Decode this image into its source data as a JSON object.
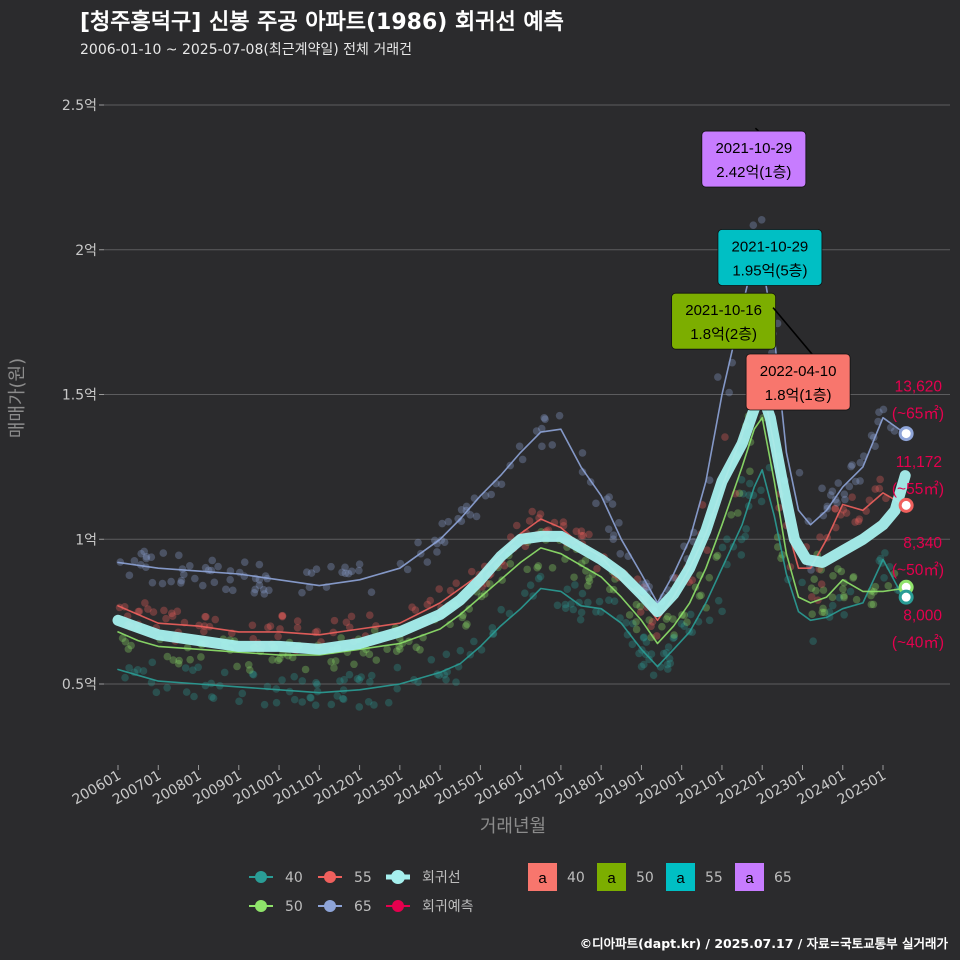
{
  "header": {
    "title": "[청주흥덕구] 신봉 주공 아파트(1986) 회귀선 예측",
    "subtitle": "2006-01-10 ~ 2025-07-08(최근계약일) 전체 거래건"
  },
  "footer": {
    "credit": "©디아파트(dapt.kr) / 2025.07.17 / 자료=국토교통부 실거래가"
  },
  "colors": {
    "background": "#2b2b2d",
    "grid": "#5c5c5e",
    "s40": "#2a9d96",
    "s50": "#8fe36a",
    "s55": "#f0605d",
    "s65": "#8ea4d8",
    "regression": "#a6f0ee",
    "prediction": "#e5004e"
  },
  "chart_data": {
    "type": "line",
    "xlabel": "거래년월",
    "ylabel": "매매가(원)",
    "x_ticks": [
      "200601",
      "200701",
      "200801",
      "200901",
      "201001",
      "201101",
      "201201",
      "201301",
      "201401",
      "201501",
      "201601",
      "201701",
      "201801",
      "201901",
      "202001",
      "202101",
      "202201",
      "202301",
      "202401",
      "202501"
    ],
    "y_ticks": [
      {
        "value": 0.5,
        "label": "0.5억"
      },
      {
        "value": 1.0,
        "label": "1억"
      },
      {
        "value": 1.5,
        "label": "1.5억"
      },
      {
        "value": 2.0,
        "label": "2억"
      },
      {
        "value": 2.5,
        "label": "2.5억"
      }
    ],
    "xlim": [
      2006.0,
      2025.8
    ],
    "ylim": [
      0.27,
      2.68
    ],
    "series": [
      {
        "name": "40",
        "color_key": "s40",
        "points": [
          [
            2006.0,
            0.55
          ],
          [
            2006.5,
            0.53
          ],
          [
            2007.0,
            0.51
          ],
          [
            2008.0,
            0.5
          ],
          [
            2009.0,
            0.49
          ],
          [
            2010.0,
            0.48
          ],
          [
            2011.0,
            0.47
          ],
          [
            2012.0,
            0.48
          ],
          [
            2013.0,
            0.5
          ],
          [
            2014.0,
            0.54
          ],
          [
            2014.5,
            0.57
          ],
          [
            2015.0,
            0.63
          ],
          [
            2015.5,
            0.7
          ],
          [
            2016.0,
            0.76
          ],
          [
            2016.5,
            0.83
          ],
          [
            2017.0,
            0.82
          ],
          [
            2017.5,
            0.77
          ],
          [
            2018.0,
            0.76
          ],
          [
            2018.5,
            0.71
          ],
          [
            2019.0,
            0.62
          ],
          [
            2019.4,
            0.56
          ],
          [
            2019.8,
            0.62
          ],
          [
            2020.2,
            0.68
          ],
          [
            2020.6,
            0.78
          ],
          [
            2021.0,
            0.9
          ],
          [
            2021.5,
            1.05
          ],
          [
            2021.8,
            1.18
          ],
          [
            2022.0,
            1.24
          ],
          [
            2022.3,
            1.08
          ],
          [
            2022.6,
            0.88
          ],
          [
            2022.9,
            0.75
          ],
          [
            2023.2,
            0.72
          ],
          [
            2023.6,
            0.73
          ],
          [
            2024.0,
            0.76
          ],
          [
            2024.5,
            0.78
          ],
          [
            2025.0,
            0.93
          ],
          [
            2025.5,
            0.8
          ]
        ]
      },
      {
        "name": "50",
        "color_key": "s50",
        "points": [
          [
            2006.0,
            0.68
          ],
          [
            2006.5,
            0.65
          ],
          [
            2007.0,
            0.63
          ],
          [
            2008.0,
            0.62
          ],
          [
            2009.0,
            0.61
          ],
          [
            2010.0,
            0.6
          ],
          [
            2011.0,
            0.6
          ],
          [
            2012.0,
            0.62
          ],
          [
            2013.0,
            0.64
          ],
          [
            2014.0,
            0.69
          ],
          [
            2014.5,
            0.74
          ],
          [
            2015.0,
            0.8
          ],
          [
            2015.5,
            0.86
          ],
          [
            2016.0,
            0.92
          ],
          [
            2016.5,
            0.97
          ],
          [
            2017.0,
            0.95
          ],
          [
            2017.5,
            0.91
          ],
          [
            2018.0,
            0.87
          ],
          [
            2018.5,
            0.8
          ],
          [
            2019.0,
            0.72
          ],
          [
            2019.4,
            0.64
          ],
          [
            2019.8,
            0.7
          ],
          [
            2020.2,
            0.78
          ],
          [
            2020.6,
            0.9
          ],
          [
            2021.0,
            1.05
          ],
          [
            2021.5,
            1.25
          ],
          [
            2021.8,
            1.38
          ],
          [
            2022.0,
            1.42
          ],
          [
            2022.3,
            1.2
          ],
          [
            2022.6,
            0.95
          ],
          [
            2022.9,
            0.8
          ],
          [
            2023.2,
            0.78
          ],
          [
            2023.6,
            0.8
          ],
          [
            2024.0,
            0.86
          ],
          [
            2024.5,
            0.82
          ],
          [
            2025.0,
            0.82
          ],
          [
            2025.5,
            0.83
          ]
        ]
      },
      {
        "name": "55",
        "color_key": "s55",
        "points": [
          [
            2006.0,
            0.77
          ],
          [
            2006.5,
            0.74
          ],
          [
            2007.0,
            0.71
          ],
          [
            2008.0,
            0.7
          ],
          [
            2009.0,
            0.68
          ],
          [
            2010.0,
            0.68
          ],
          [
            2011.0,
            0.67
          ],
          [
            2012.0,
            0.69
          ],
          [
            2013.0,
            0.71
          ],
          [
            2014.0,
            0.78
          ],
          [
            2014.5,
            0.83
          ],
          [
            2015.0,
            0.88
          ],
          [
            2015.5,
            0.95
          ],
          [
            2016.0,
            1.02
          ],
          [
            2016.5,
            1.07
          ],
          [
            2017.0,
            1.04
          ],
          [
            2017.5,
            0.98
          ],
          [
            2018.0,
            0.94
          ],
          [
            2018.5,
            0.86
          ],
          [
            2019.0,
            0.8
          ],
          [
            2019.4,
            0.72
          ],
          [
            2019.8,
            0.8
          ],
          [
            2020.2,
            0.9
          ],
          [
            2020.6,
            1.02
          ],
          [
            2021.0,
            1.18
          ],
          [
            2021.5,
            1.36
          ],
          [
            2021.8,
            1.5
          ],
          [
            2022.0,
            1.54
          ],
          [
            2022.3,
            1.32
          ],
          [
            2022.6,
            1.05
          ],
          [
            2022.9,
            0.9
          ],
          [
            2023.2,
            0.9
          ],
          [
            2023.6,
            1.0
          ],
          [
            2024.0,
            1.12
          ],
          [
            2024.5,
            1.1
          ],
          [
            2025.0,
            1.16
          ],
          [
            2025.5,
            1.12
          ]
        ]
      },
      {
        "name": "65",
        "color_key": "s65",
        "points": [
          [
            2006.0,
            0.92
          ],
          [
            2006.5,
            0.91
          ],
          [
            2007.0,
            0.9
          ],
          [
            2008.0,
            0.89
          ],
          [
            2009.0,
            0.88
          ],
          [
            2010.0,
            0.86
          ],
          [
            2011.0,
            0.84
          ],
          [
            2012.0,
            0.86
          ],
          [
            2013.0,
            0.9
          ],
          [
            2014.0,
            1.0
          ],
          [
            2014.5,
            1.07
          ],
          [
            2015.0,
            1.15
          ],
          [
            2015.5,
            1.22
          ],
          [
            2016.0,
            1.3
          ],
          [
            2016.5,
            1.37
          ],
          [
            2017.0,
            1.38
          ],
          [
            2017.5,
            1.25
          ],
          [
            2018.0,
            1.15
          ],
          [
            2018.5,
            1.0
          ],
          [
            2019.0,
            0.88
          ],
          [
            2019.4,
            0.78
          ],
          [
            2019.8,
            0.88
          ],
          [
            2020.2,
            1.0
          ],
          [
            2020.6,
            1.2
          ],
          [
            2021.0,
            1.5
          ],
          [
            2021.5,
            1.8
          ],
          [
            2021.8,
            1.98
          ],
          [
            2022.0,
            1.96
          ],
          [
            2022.3,
            1.7
          ],
          [
            2022.6,
            1.3
          ],
          [
            2022.9,
            1.1
          ],
          [
            2023.2,
            1.05
          ],
          [
            2023.6,
            1.1
          ],
          [
            2024.0,
            1.18
          ],
          [
            2024.5,
            1.25
          ],
          [
            2025.0,
            1.42
          ],
          [
            2025.5,
            1.37
          ]
        ]
      },
      {
        "name": "회귀선",
        "color_key": "regression",
        "points": [
          [
            2006.0,
            0.72
          ],
          [
            2007.0,
            0.67
          ],
          [
            2008.0,
            0.65
          ],
          [
            2009.0,
            0.63
          ],
          [
            2010.0,
            0.63
          ],
          [
            2011.0,
            0.62
          ],
          [
            2012.0,
            0.64
          ],
          [
            2013.0,
            0.68
          ],
          [
            2014.0,
            0.74
          ],
          [
            2014.5,
            0.79
          ],
          [
            2015.0,
            0.86
          ],
          [
            2015.5,
            0.94
          ],
          [
            2016.0,
            1.0
          ],
          [
            2016.5,
            1.01
          ],
          [
            2017.0,
            1.01
          ],
          [
            2017.5,
            0.97
          ],
          [
            2018.0,
            0.93
          ],
          [
            2018.5,
            0.88
          ],
          [
            2019.0,
            0.81
          ],
          [
            2019.4,
            0.75
          ],
          [
            2019.8,
            0.81
          ],
          [
            2020.2,
            0.9
          ],
          [
            2020.6,
            1.03
          ],
          [
            2021.0,
            1.2
          ],
          [
            2021.5,
            1.33
          ],
          [
            2021.8,
            1.45
          ],
          [
            2022.0,
            1.5
          ],
          [
            2022.2,
            1.42
          ],
          [
            2022.5,
            1.2
          ],
          [
            2022.8,
            1.0
          ],
          [
            2023.1,
            0.93
          ],
          [
            2023.5,
            0.92
          ],
          [
            2024.0,
            0.96
          ],
          [
            2024.5,
            1.0
          ],
          [
            2025.0,
            1.05
          ],
          [
            2025.3,
            1.1
          ],
          [
            2025.55,
            1.22
          ]
        ]
      }
    ],
    "predictions": [
      {
        "series": "65",
        "price": "13,620",
        "area": "(~65㎡)",
        "y": 1.365,
        "label_y": 1.51
      },
      {
        "series": "55",
        "price": "11,172",
        "area": "(~55㎡)",
        "y": 1.117,
        "label_y": 1.25
      },
      {
        "series": "50",
        "price": "8,340",
        "area": "(~50㎡)",
        "y": 0.834,
        "label_y": 0.97
      },
      {
        "series": "40",
        "price": "8,000",
        "area": "(~40㎡)",
        "y": 0.8,
        "label_y": 0.72
      }
    ],
    "annotations": [
      {
        "date": "2021-10-29",
        "price": "2.42억(1층)",
        "series": "65",
        "color": "#c77cff",
        "x": 2021.83,
        "y": 2.42,
        "box_x": 2020.5,
        "box_y": 2.41
      },
      {
        "date": "2021-10-29",
        "price": "1.95억(5층)",
        "series": "55",
        "color": "#00bfc4",
        "x": 2021.83,
        "y": 1.95,
        "box_x": 2020.9,
        "box_y": 2.07
      },
      {
        "date": "2021-10-16",
        "price": "1.8억(2층)",
        "series": "50",
        "color": "#7cae00",
        "x": 2021.79,
        "y": 1.8,
        "box_x": 2019.75,
        "box_y": 1.85
      },
      {
        "date": "2022-04-10",
        "price": "1.8억(1층)",
        "series": "40",
        "color": "#f8766d",
        "x": 2022.27,
        "y": 1.8,
        "box_x": 2021.6,
        "box_y": 1.64
      }
    ],
    "legend": {
      "lines": [
        {
          "label": "40",
          "color_key": "s40"
        },
        {
          "label": "55",
          "color_key": "s55"
        },
        {
          "label": "회귀선",
          "color_key": "regression"
        },
        {
          "label": "50",
          "color_key": "s50"
        },
        {
          "label": "65",
          "color_key": "s65"
        },
        {
          "label": "회귀예측",
          "color_key": "prediction"
        }
      ],
      "annotation_keys": [
        {
          "glyph": "a",
          "label": "40",
          "color": "#f8766d"
        },
        {
          "glyph": "a",
          "label": "50",
          "color": "#7cae00"
        },
        {
          "glyph": "a",
          "label": "55",
          "color": "#00bfc4"
        },
        {
          "glyph": "a",
          "label": "65",
          "color": "#c77cff"
        }
      ]
    }
  }
}
